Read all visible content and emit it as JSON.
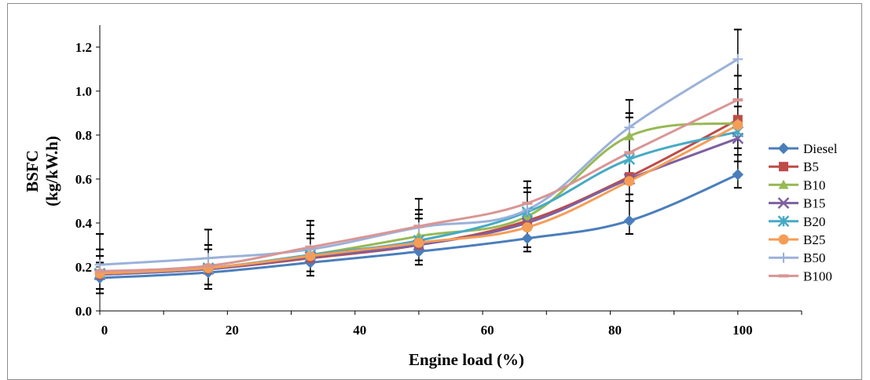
{
  "chart_data": {
    "type": "line",
    "xlabel": "Engine load (%)",
    "ylabel_lines": [
      "BSFC",
      "(kg/kW.h)"
    ],
    "xlim": [
      0,
      110
    ],
    "ylim": [
      0,
      1.3
    ],
    "xticks": [
      0,
      20,
      40,
      60,
      80,
      100
    ],
    "xtick_labels": [
      "0",
      "20",
      "40",
      "60",
      "80",
      "100"
    ],
    "yticks": [
      0,
      0.2,
      0.4,
      0.6,
      0.8,
      1.0,
      1.2
    ],
    "ytick_labels": [
      "0.0",
      "0.2",
      "0.4",
      "0.6",
      "0.8",
      "1.0",
      "1.2"
    ],
    "grid": false,
    "legend_position": "right",
    "x": [
      0,
      17,
      33,
      50,
      67,
      83,
      100
    ],
    "series": [
      {
        "name": "Diesel",
        "color": "#4a7ebb",
        "marker": "diamond",
        "values": [
          0.15,
          0.175,
          0.22,
          0.27,
          0.33,
          0.41,
          0.62
        ]
      },
      {
        "name": "B5",
        "color": "#be4b48",
        "marker": "square",
        "values": [
          0.165,
          0.19,
          0.24,
          0.3,
          0.41,
          0.61,
          0.87
        ]
      },
      {
        "name": "B10",
        "color": "#98b954",
        "marker": "triangle",
        "values": [
          0.17,
          0.195,
          0.255,
          0.34,
          0.43,
          0.795,
          0.855
        ]
      },
      {
        "name": "B15",
        "color": "#7d60a0",
        "marker": "x",
        "values": [
          0.165,
          0.19,
          0.245,
          0.3,
          0.4,
          0.6,
          0.785
        ]
      },
      {
        "name": "B20",
        "color": "#46aac5",
        "marker": "star",
        "values": [
          0.17,
          0.195,
          0.255,
          0.32,
          0.45,
          0.69,
          0.815
        ]
      },
      {
        "name": "B25",
        "color": "#f59d56",
        "marker": "circle",
        "values": [
          0.17,
          0.195,
          0.25,
          0.31,
          0.38,
          0.59,
          0.845
        ]
      },
      {
        "name": "B50",
        "color": "#9bb1d9",
        "marker": "plus",
        "values": [
          0.21,
          0.24,
          0.28,
          0.38,
          0.46,
          0.835,
          1.145
        ]
      },
      {
        "name": "B100",
        "color": "#d99694",
        "marker": "dash",
        "values": [
          0.18,
          0.205,
          0.29,
          0.385,
          0.49,
          0.72,
          0.96
        ]
      }
    ],
    "error_bars": [
      {
        "x": 0,
        "caps": [
          0.08,
          0.1,
          0.22,
          0.25,
          0.28,
          0.35
        ]
      },
      {
        "x": 17,
        "caps": [
          0.1,
          0.12,
          0.28,
          0.3,
          0.37
        ]
      },
      {
        "x": 33,
        "caps": [
          0.16,
          0.18,
          0.33,
          0.35,
          0.39,
          0.41
        ]
      },
      {
        "x": 50,
        "caps": [
          0.21,
          0.23,
          0.42,
          0.44,
          0.46,
          0.51
        ]
      },
      {
        "x": 67,
        "caps": [
          0.27,
          0.29,
          0.54,
          0.56,
          0.59
        ]
      },
      {
        "x": 83,
        "caps": [
          0.35,
          0.5,
          0.53,
          0.88,
          0.9,
          0.96
        ]
      },
      {
        "x": 100,
        "caps": [
          0.56,
          0.68,
          0.71,
          0.74,
          0.93,
          0.96,
          1.01,
          1.07,
          1.28
        ]
      }
    ]
  }
}
